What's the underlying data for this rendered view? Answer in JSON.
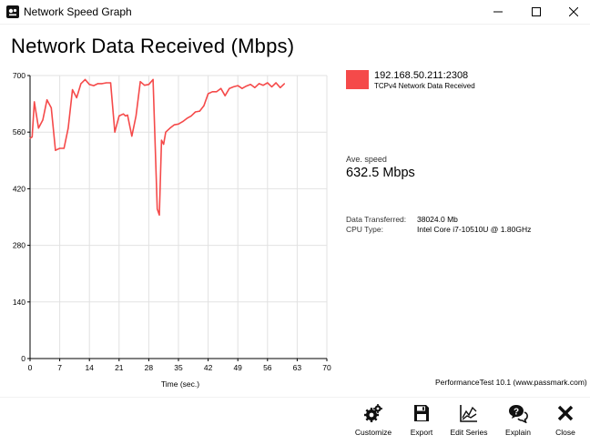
{
  "window": {
    "title": "Network Speed Graph",
    "minimize_label": "Minimize",
    "maximize_label": "Maximize",
    "close_label": "Close"
  },
  "page_title": "Network Data Received (Mbps)",
  "legend": {
    "address": "192.168.50.211:2308",
    "series_name": "TCPv4 Network Data Received",
    "color": "#f54a4a"
  },
  "stats": {
    "ave_label": "Ave. speed",
    "ave_value": "632.5 Mbps",
    "transferred_label": "Data Transferred:",
    "transferred_value": "38024.0 Mb",
    "cpu_label": "CPU Type:",
    "cpu_value": "Intel Core i7-10510U @ 1.80GHz"
  },
  "brand": "PerformanceTest 10.1 (www.passmark.com)",
  "toolbar": [
    {
      "id": "customize",
      "label": "Customize",
      "icon": "gears-icon"
    },
    {
      "id": "export",
      "label": "Export",
      "icon": "save-icon"
    },
    {
      "id": "edit_series",
      "label": "Edit Series",
      "icon": "chart-line-icon"
    },
    {
      "id": "explain",
      "label": "Explain",
      "icon": "help-bubble-icon"
    },
    {
      "id": "close",
      "label": "Close",
      "icon": "close-x-icon"
    }
  ],
  "chart_data": {
    "type": "line",
    "xlabel": "Time (sec.)",
    "ylabel": "",
    "xlim": [
      0,
      70
    ],
    "ylim": [
      0,
      700
    ],
    "xticks": [
      0,
      7,
      14,
      21,
      28,
      35,
      42,
      49,
      56,
      63,
      70
    ],
    "yticks": [
      0,
      140,
      280,
      420,
      560,
      700
    ],
    "grid": true,
    "series": [
      {
        "name": "TCPv4 Network Data Received",
        "color": "#f54a4a",
        "x": [
          0,
          0.5,
          1,
          2,
          3,
          4,
          5,
          6,
          7,
          8,
          9,
          10,
          11,
          12,
          13,
          14,
          15,
          16,
          17,
          18,
          19,
          20,
          21,
          22,
          22.5,
          23,
          24,
          25,
          26,
          27,
          28,
          29,
          30,
          30.5,
          31,
          31.5,
          32,
          33,
          34,
          35,
          36,
          37,
          38,
          39,
          40,
          41,
          42,
          43,
          44,
          45,
          46,
          47,
          48,
          49,
          50,
          51,
          52,
          53,
          54,
          55,
          56,
          57,
          58,
          59,
          60
        ],
        "values": [
          545,
          548,
          635,
          570,
          590,
          640,
          620,
          515,
          520,
          520,
          570,
          665,
          645,
          680,
          690,
          678,
          675,
          680,
          680,
          682,
          682,
          560,
          600,
          605,
          600,
          602,
          550,
          600,
          685,
          676,
          678,
          690,
          370,
          355,
          540,
          530,
          560,
          570,
          578,
          580,
          586,
          594,
          600,
          610,
          612,
          625,
          655,
          660,
          660,
          668,
          650,
          668,
          672,
          675,
          668,
          674,
          678,
          670,
          680,
          676,
          682,
          672,
          682,
          670,
          680
        ]
      }
    ]
  }
}
